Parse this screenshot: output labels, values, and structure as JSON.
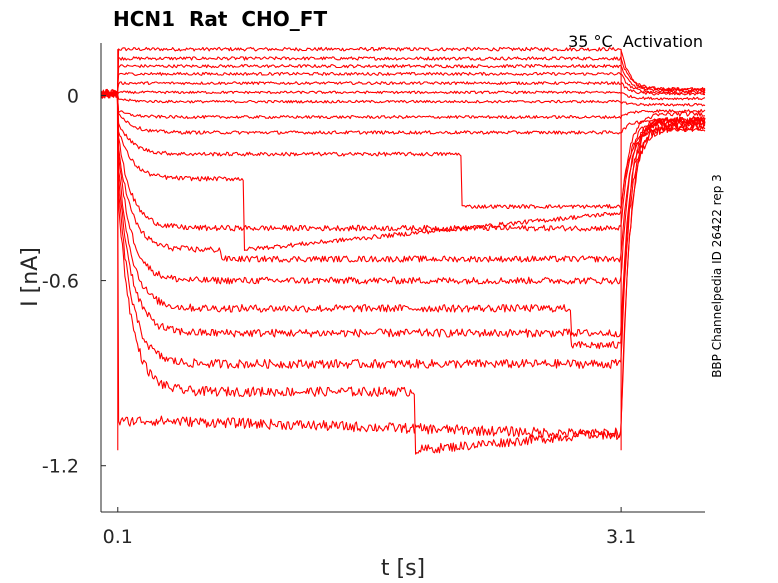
{
  "chart_data": {
    "type": "line",
    "title": "HCN1  Rat  CHO_FT",
    "subtitle": "35 °C  Activation",
    "side_label": "BBP Channelpedia ID 26422 rep 3",
    "xlabel": "t [s]",
    "ylabel": "I [nA]",
    "xlim": [
      0.0,
      3.6
    ],
    "ylim": [
      -1.35,
      0.17
    ],
    "xticks": [
      0.1,
      3.1
    ],
    "xtick_labels": [
      "0.1",
      "3.1"
    ],
    "yticks": [
      0,
      -0.6,
      -1.2
    ],
    "ytick_labels": [
      "0",
      "-0.6",
      "-1.2"
    ],
    "grid": false,
    "series_color": "#ff0000",
    "step_on": 0.1,
    "step_off": 3.1,
    "series": [
      {
        "baseline": 0.005,
        "peak": 0.15,
        "plateau": 0.15,
        "tail": 0.02
      },
      {
        "baseline": 0.005,
        "peak": 0.12,
        "plateau": 0.12,
        "tail": 0.02
      },
      {
        "baseline": 0.005,
        "peak": 0.095,
        "plateau": 0.095,
        "tail": 0.015
      },
      {
        "baseline": 0.005,
        "peak": 0.07,
        "plateau": 0.07,
        "tail": 0.01
      },
      {
        "baseline": 0.005,
        "peak": 0.04,
        "plateau": 0.04,
        "tail": 0.005
      },
      {
        "baseline": 0.005,
        "peak": 0.01,
        "plateau": 0.01,
        "tail": -0.01
      },
      {
        "baseline": 0.005,
        "peak": -0.01,
        "plateau": -0.02,
        "tail": -0.03
      },
      {
        "baseline": 0.005,
        "peak": -0.05,
        "plateau": -0.07,
        "tail": -0.05
      },
      {
        "baseline": 0.005,
        "peak": -0.05,
        "plateau": -0.12,
        "tail": -0.08
      },
      {
        "baseline": 0.005,
        "peak": -0.08,
        "plateau": -0.19,
        "jump_t": 2.15,
        "after": -0.36,
        "tail": -0.11
      },
      {
        "baseline": 0.005,
        "peak": -0.1,
        "plateau": -0.27,
        "jump_t": 0.85,
        "after": -0.5,
        "end": -0.38,
        "tail": -0.06
      },
      {
        "baseline": 0.005,
        "peak": -0.12,
        "plateau": -0.43,
        "tail": -0.08
      },
      {
        "baseline": 0.005,
        "peak": -0.15,
        "plateau": -0.5,
        "jump_t": 0.72,
        "after": -0.53,
        "end": -0.53,
        "tail": -0.09
      },
      {
        "baseline": 0.005,
        "peak": -0.17,
        "plateau": -0.6,
        "tail": -0.08
      },
      {
        "baseline": 0.005,
        "peak": -0.2,
        "plateau": -0.69,
        "jump_t": 2.8,
        "after": -0.77,
        "tail": -0.08
      },
      {
        "baseline": 0.005,
        "peak": -0.23,
        "plateau": -0.77,
        "jump_t": 2.8,
        "after": -0.81,
        "tail": -0.08
      },
      {
        "baseline": 0.005,
        "peak": -0.27,
        "plateau": -0.87,
        "tail": -0.1
      },
      {
        "baseline": 0.005,
        "peak": -0.3,
        "plateau": -0.96,
        "jump_t": 1.87,
        "after": -1.15,
        "end": -1.09,
        "tail": -0.1
      },
      {
        "baseline": 0.005,
        "peak": -1.06,
        "plateau": -1.05,
        "end": -1.1,
        "tail": -0.1
      }
    ]
  }
}
